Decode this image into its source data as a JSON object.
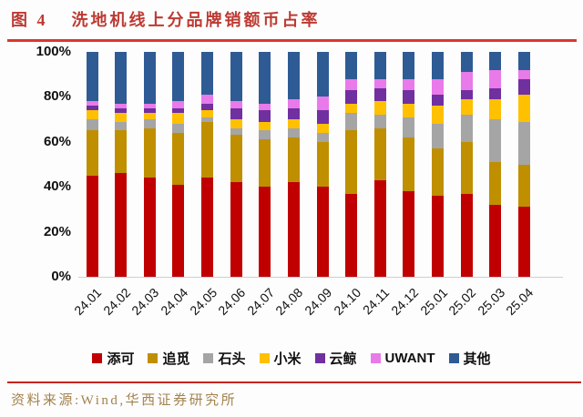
{
  "figure": {
    "label": "图 4",
    "title": "洗地机线上分品牌销额币占率"
  },
  "source": "资料来源:Wind,华西证券研究所",
  "colors": {
    "title_red": "#bd3a33",
    "rule_red": "#dc382e",
    "source_brown": "#a3824e"
  },
  "chart_data": {
    "type": "bar",
    "stacked": true,
    "unit": "%",
    "title": "洗地机线上分品牌销额币占率",
    "xlabel": "",
    "ylabel": "",
    "ylim": [
      0,
      100
    ],
    "grid": false,
    "legend_position": "bottom",
    "y_tick_labels": [
      "100%",
      "80%",
      "60%",
      "40%",
      "20%",
      "0%"
    ],
    "y_tick_values": [
      100,
      80,
      60,
      40,
      20,
      0
    ],
    "categories": [
      "24.01",
      "24.02",
      "24.03",
      "24.04",
      "24.05",
      "24.06",
      "24.07",
      "24.08",
      "24.09",
      "24.10",
      "24.11",
      "24.12",
      "25.01",
      "25.02",
      "25.03",
      "25.04"
    ],
    "series": [
      {
        "name": "添可",
        "key": "tineco",
        "color": "#c00000",
        "values": [
          45,
          46,
          44,
          41,
          44,
          42,
          40,
          42,
          40,
          37,
          43,
          38,
          36,
          37,
          32,
          31
        ]
      },
      {
        "name": "追觅",
        "key": "dreame",
        "color": "#bf8f00",
        "values": [
          20,
          19,
          22,
          23,
          25,
          21,
          21,
          20,
          20,
          28,
          23,
          24,
          21,
          23,
          19,
          19
        ]
      },
      {
        "name": "石头",
        "key": "roborock",
        "color": "#a5a5a5",
        "values": [
          5,
          4,
          4,
          4,
          2,
          3,
          4,
          4,
          4,
          8,
          6,
          9,
          11,
          12,
          19,
          19
        ]
      },
      {
        "name": "小米",
        "key": "xiaomi",
        "color": "#ffc000",
        "values": [
          4,
          4,
          3,
          5,
          3,
          4,
          4,
          4,
          4,
          4,
          6,
          6,
          8,
          7,
          9,
          12
        ]
      },
      {
        "name": "云鲸",
        "key": "narwal",
        "color": "#7030a0",
        "values": [
          2,
          2,
          2,
          2,
          3,
          5,
          5,
          5,
          6,
          6,
          6,
          6,
          5,
          4,
          5,
          7
        ]
      },
      {
        "name": "UWANT",
        "key": "uwant",
        "color": "#e97ae9",
        "values": [
          2,
          2,
          2,
          3,
          4,
          3,
          3,
          4,
          6,
          5,
          4,
          5,
          7,
          8,
          8,
          4
        ]
      },
      {
        "name": "其他",
        "key": "others",
        "color": "#2f5b94",
        "values": [
          22,
          23,
          23,
          22,
          19,
          22,
          23,
          21,
          20,
          12,
          12,
          12,
          12,
          9,
          8,
          8
        ]
      }
    ]
  }
}
